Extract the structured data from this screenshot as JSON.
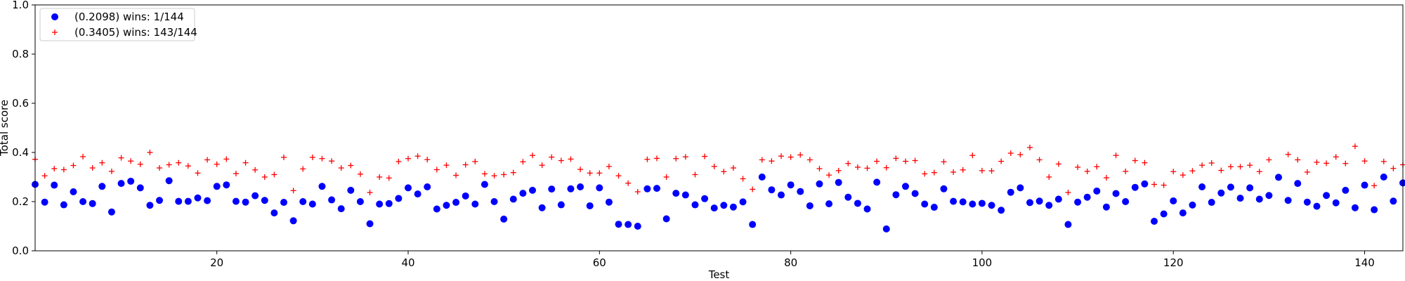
{
  "chart_data": {
    "type": "scatter",
    "title": "",
    "xlabel": "Test",
    "ylabel": "Total score",
    "xlim": [
      1,
      144
    ],
    "ylim": [
      0.0,
      1.0
    ],
    "xticks": [
      20,
      40,
      60,
      80,
      100,
      120,
      140
    ],
    "yticks": [
      0.0,
      0.2,
      0.4,
      0.6,
      0.8,
      1.0
    ],
    "xtick_labels": [
      "20",
      "40",
      "60",
      "80",
      "100",
      "120",
      "140"
    ],
    "ytick_labels": [
      "0.0",
      "0.2",
      "0.4",
      "0.6",
      "0.8",
      "1.0"
    ],
    "grid": false,
    "legend_position": "top-left",
    "x": [
      1,
      2,
      3,
      4,
      5,
      6,
      7,
      8,
      9,
      10,
      11,
      12,
      13,
      14,
      15,
      16,
      17,
      18,
      19,
      20,
      21,
      22,
      23,
      24,
      25,
      26,
      27,
      28,
      29,
      30,
      31,
      32,
      33,
      34,
      35,
      36,
      37,
      38,
      39,
      40,
      41,
      42,
      43,
      44,
      45,
      46,
      47,
      48,
      49,
      50,
      51,
      52,
      53,
      54,
      55,
      56,
      57,
      58,
      59,
      60,
      61,
      62,
      63,
      64,
      65,
      66,
      67,
      68,
      69,
      70,
      71,
      72,
      73,
      74,
      75,
      76,
      77,
      78,
      79,
      80,
      81,
      82,
      83,
      84,
      85,
      86,
      87,
      88,
      89,
      90,
      91,
      92,
      93,
      94,
      95,
      96,
      97,
      98,
      99,
      100,
      101,
      102,
      103,
      104,
      105,
      106,
      107,
      108,
      109,
      110,
      111,
      112,
      113,
      114,
      115,
      116,
      117,
      118,
      119,
      120,
      121,
      122,
      123,
      124,
      125,
      126,
      127,
      128,
      129,
      130,
      131,
      132,
      133,
      134,
      135,
      136,
      137,
      138,
      139,
      140,
      141,
      142,
      143,
      144
    ],
    "series": [
      {
        "name": "(0.2098) wins: 1/144",
        "marker": "circle",
        "color": "#0000ff",
        "values": [
          0.27,
          0.198,
          0.267,
          0.187,
          0.24,
          0.2,
          0.192,
          0.262,
          0.158,
          0.274,
          0.283,
          0.256,
          0.185,
          0.205,
          0.285,
          0.201,
          0.201,
          0.215,
          0.204,
          0.262,
          0.268,
          0.201,
          0.198,
          0.224,
          0.205,
          0.154,
          0.197,
          0.122,
          0.2,
          0.19,
          0.262,
          0.207,
          0.171,
          0.246,
          0.2,
          0.11,
          0.19,
          0.192,
          0.213,
          0.256,
          0.231,
          0.26,
          0.17,
          0.185,
          0.197,
          0.223,
          0.19,
          0.27,
          0.2,
          0.129,
          0.21,
          0.234,
          0.246,
          0.175,
          0.251,
          0.187,
          0.252,
          0.26,
          0.183,
          0.256,
          0.198,
          0.108,
          0.107,
          0.1,
          0.252,
          0.254,
          0.13,
          0.234,
          0.227,
          0.187,
          0.212,
          0.174,
          0.185,
          0.178,
          0.199,
          0.107,
          0.3,
          0.248,
          0.227,
          0.268,
          0.241,
          0.183,
          0.272,
          0.191,
          0.278,
          0.218,
          0.193,
          0.17,
          0.279,
          0.089,
          0.228,
          0.262,
          0.233,
          0.19,
          0.177,
          0.252,
          0.201,
          0.199,
          0.19,
          0.193,
          0.185,
          0.165,
          0.238,
          0.256,
          0.196,
          0.202,
          0.185,
          0.21,
          0.107,
          0.198,
          0.218,
          0.243,
          0.178,
          0.233,
          0.2,
          0.258,
          0.272,
          0.12,
          0.15,
          0.203,
          0.154,
          0.186,
          0.26,
          0.197,
          0.235,
          0.259,
          0.214,
          0.256,
          0.21,
          0.225,
          0.299,
          0.205,
          0.274,
          0.198,
          0.181,
          0.225,
          0.195,
          0.246,
          0.175,
          0.267,
          0.167,
          0.3,
          0.202,
          0.276
        ]
      },
      {
        "name": "(0.3405) wins: 143/144",
        "marker": "plus",
        "color": "#ff0000",
        "values": [
          0.372,
          0.305,
          0.334,
          0.33,
          0.347,
          0.383,
          0.337,
          0.358,
          0.323,
          0.378,
          0.365,
          0.352,
          0.4,
          0.337,
          0.35,
          0.358,
          0.345,
          0.316,
          0.37,
          0.352,
          0.373,
          0.314,
          0.358,
          0.329,
          0.3,
          0.31,
          0.38,
          0.245,
          0.333,
          0.38,
          0.375,
          0.365,
          0.337,
          0.347,
          0.312,
          0.237,
          0.3,
          0.296,
          0.363,
          0.375,
          0.385,
          0.371,
          0.33,
          0.348,
          0.307,
          0.35,
          0.363,
          0.313,
          0.305,
          0.31,
          0.318,
          0.362,
          0.388,
          0.348,
          0.381,
          0.367,
          0.373,
          0.331,
          0.316,
          0.316,
          0.343,
          0.305,
          0.275,
          0.24,
          0.372,
          0.376,
          0.3,
          0.375,
          0.382,
          0.31,
          0.384,
          0.343,
          0.322,
          0.337,
          0.293,
          0.25,
          0.37,
          0.365,
          0.385,
          0.381,
          0.39,
          0.37,
          0.334,
          0.308,
          0.326,
          0.355,
          0.34,
          0.336,
          0.364,
          0.338,
          0.376,
          0.364,
          0.367,
          0.313,
          0.318,
          0.362,
          0.32,
          0.329,
          0.388,
          0.326,
          0.325,
          0.364,
          0.397,
          0.391,
          0.42,
          0.37,
          0.3,
          0.353,
          0.237,
          0.34,
          0.323,
          0.342,
          0.297,
          0.388,
          0.323,
          0.367,
          0.358,
          0.27,
          0.267,
          0.322,
          0.308,
          0.325,
          0.348,
          0.357,
          0.327,
          0.342,
          0.342,
          0.348,
          0.322,
          0.37,
          0.298,
          0.392,
          0.37,
          0.32,
          0.36,
          0.356,
          0.382,
          0.355,
          0.425,
          0.365,
          0.265,
          0.363,
          0.335,
          0.35
        ]
      }
    ]
  }
}
